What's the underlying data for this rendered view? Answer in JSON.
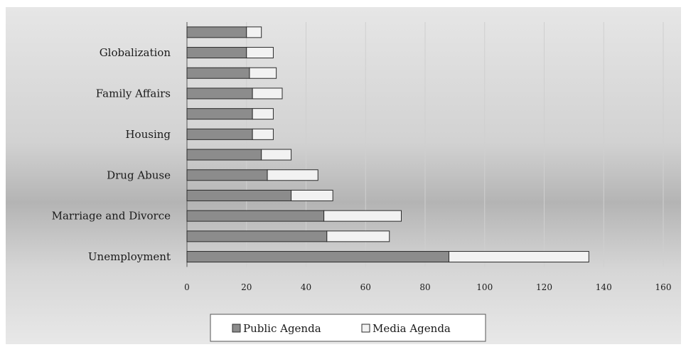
{
  "chart_data": {
    "type": "bar",
    "orientation": "horizontal",
    "stacked": true,
    "categories": [
      "Unemployment",
      "",
      "Marriage and Divorce",
      "",
      "Drug Abuse",
      "",
      "Housing",
      "",
      "Family Affairs",
      "",
      "Globalization",
      ""
    ],
    "series": [
      {
        "name": "Public Agenda",
        "values": [
          88,
          47,
          46,
          35,
          27,
          25,
          22,
          22,
          22,
          21,
          20,
          20
        ]
      },
      {
        "name": "Media Agenda",
        "values": [
          47,
          21,
          26,
          14,
          17,
          10,
          7,
          7,
          10,
          9,
          9,
          5
        ]
      }
    ],
    "xlim": [
      0,
      160
    ],
    "xticks": [
      0,
      20,
      40,
      60,
      80,
      100,
      120,
      140,
      160
    ],
    "xlabel": "",
    "ylabel": "",
    "title": "",
    "grid": true,
    "legend_position": "bottom",
    "colors": {
      "public": "#8c8c8c",
      "media": "#f2f2f2",
      "bar_border": "#2b2b2b",
      "gridline": "#cfcfcf"
    }
  }
}
